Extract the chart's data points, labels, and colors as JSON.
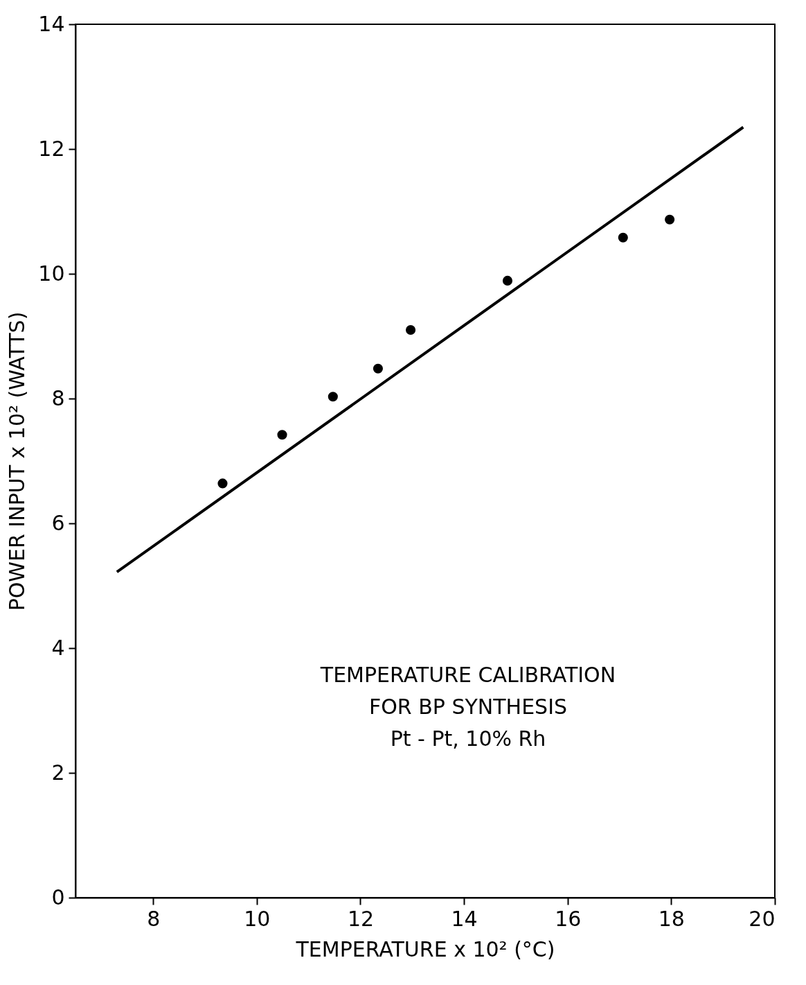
{
  "chart_data": {
    "type": "scatter",
    "xlabel": "TEMPERATURE x 10² (°C)",
    "ylabel": "POWER INPUT x 10² (WATTS)",
    "annotations": [
      "TEMPERATURE CALIBRATION",
      "FOR BP SYNTHESIS",
      "Pt - Pt, 10% Rh"
    ],
    "x": [
      9.34,
      10.49,
      11.47,
      12.34,
      12.97,
      14.84,
      17.07,
      17.97
    ],
    "series": [
      {
        "color": "#000000",
        "values": [
          6.64,
          7.42,
          8.03,
          8.48,
          9.1,
          9.89,
          10.58,
          10.87
        ]
      },
      {
        "type": "line",
        "marker": "none",
        "color": "#000000",
        "x": [
          7.3,
          19.39
        ],
        "values": [
          5.22,
          12.35
        ]
      }
    ],
    "xlim": [
      6.5,
      20
    ],
    "xticks": [
      8,
      10,
      12,
      14,
      16,
      18,
      20
    ],
    "ylim": [
      0,
      14
    ],
    "yticks": [
      0,
      2,
      4,
      6,
      8,
      10,
      12,
      14
    ],
    "marker": "circle",
    "line_style": "solid"
  }
}
